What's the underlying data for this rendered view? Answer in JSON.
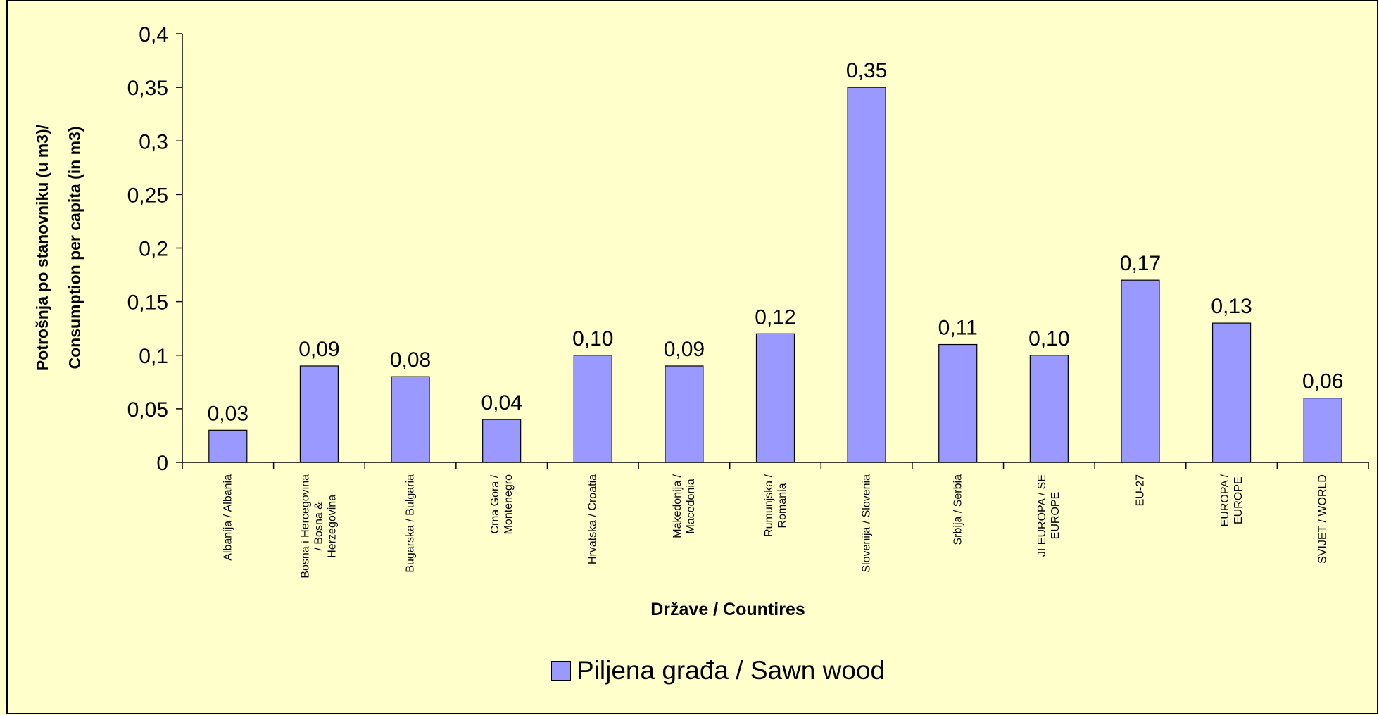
{
  "chart_data": {
    "type": "bar",
    "y_label": "Potrošnja po stanovniku (u m3)/\nConsumption per capita (in m3)",
    "x_label": "Države / Countires",
    "categories": [
      "Albanija / Albania",
      "Bosna i Hercegovina\n/ Bosna &\nHerzegovina",
      "Bugarska / Bulgaria",
      "Crna Gora /\nMontenegro",
      "Hrvatska / Croatia",
      "Makedonija /\nMacedonia",
      "Rumunjska /\nRomania",
      "Slovenija / Slovenia",
      "Srbija / Serbia",
      "JI EUROPA / SE\nEUROPE",
      "EU-27",
      "EUROPA /\nEUROPE",
      "SVIJET / WORLD"
    ],
    "series": [
      {
        "name": "Piljena građa / Sawn wood",
        "color": "#9999ff",
        "values": [
          0.03,
          0.09,
          0.08,
          0.04,
          0.1,
          0.09,
          0.12,
          0.35,
          0.11,
          0.1,
          0.17,
          0.13,
          0.06
        ],
        "value_labels": [
          "0,03",
          "0,09",
          "0,08",
          "0,04",
          "0,10",
          "0,09",
          "0,12",
          "0,35",
          "0,11",
          "0,10",
          "0,17",
          "0,13",
          "0,06"
        ]
      }
    ],
    "ylim": [
      0,
      0.4
    ],
    "yticks": [
      0,
      {
        "value": 0.05,
        "label": "0,05"
      },
      {
        "value": 0.1,
        "label": "0,1"
      },
      {
        "value": 0.15,
        "label": "0,15"
      },
      {
        "value": 0.2,
        "label": "0,2"
      },
      {
        "value": 0.25,
        "label": "0,25"
      },
      {
        "value": 0.3,
        "label": "0,3"
      },
      {
        "value": 0.35,
        "label": "0,35"
      },
      {
        "value": 0.4,
        "label": "0,4"
      }
    ],
    "legend": "bottom"
  }
}
